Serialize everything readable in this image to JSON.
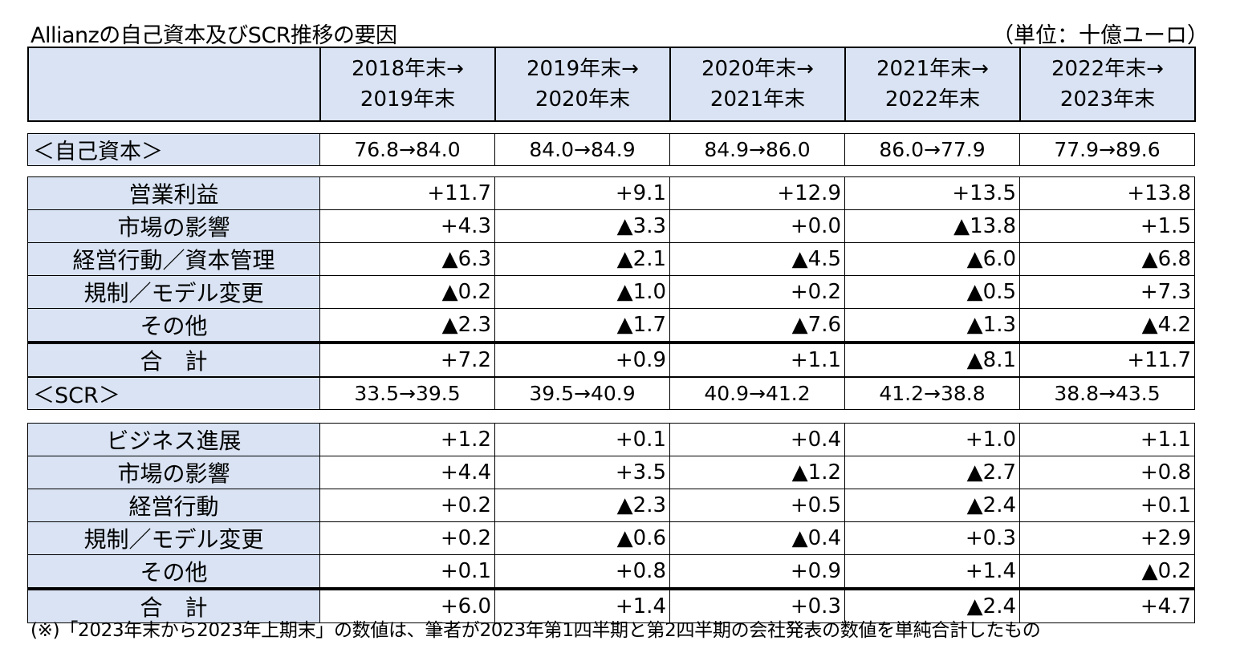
{
  "title": "Allianzの自己資本及びSCR推移の要因",
  "unit": "（単位：十億ユーロ）",
  "header": {
    "periods": [
      {
        "line1": "2018年末→",
        "line2": "2019年末"
      },
      {
        "line1": "2019年末→",
        "line2": "2020年末"
      },
      {
        "line1": "2020年末→",
        "line2": "2021年末"
      },
      {
        "line1": "2021年末→",
        "line2": "2022年末"
      },
      {
        "line1": "2022年末→",
        "line2": "2023年末"
      }
    ]
  },
  "equity": {
    "label": "＜自己資本＞",
    "values": [
      "76.8→84.0",
      "84.0→84.9",
      "84.9→86.0",
      "86.0→77.9",
      "77.9→89.6"
    ],
    "rows": [
      {
        "label": "営業利益",
        "values": [
          "+11.7",
          "+9.1",
          "+12.9",
          "+13.5",
          "+13.8"
        ]
      },
      {
        "label": "市場の影響",
        "values": [
          "+4.3",
          "▲3.3",
          "+0.0",
          "▲13.8",
          "+1.5"
        ]
      },
      {
        "label": "経営行動／資本管理",
        "values": [
          "▲6.3",
          "▲2.1",
          "▲4.5",
          "▲6.0",
          "▲6.8"
        ]
      },
      {
        "label": "規制／モデル変更",
        "values": [
          "▲0.2",
          "▲1.0",
          "+0.2",
          "▲0.5",
          "+7.3"
        ]
      },
      {
        "label": "その他",
        "values": [
          "▲2.3",
          "▲1.7",
          "▲7.6",
          "▲1.3",
          "▲4.2"
        ]
      }
    ],
    "total": {
      "label": "合　計",
      "values": [
        "+7.2",
        "+0.9",
        "+1.1",
        "▲8.1",
        "+11.7"
      ]
    }
  },
  "scr": {
    "label": "＜SCR＞",
    "values": [
      "33.5→39.5",
      "39.5→40.9",
      "40.9→41.2",
      "41.2→38.8",
      "38.8→43.5"
    ],
    "rows": [
      {
        "label": "ビジネス進展",
        "values": [
          "+1.2",
          "+0.1",
          "+0.4",
          "+1.0",
          "+1.1"
        ]
      },
      {
        "label": "市場の影響",
        "values": [
          "+4.4",
          "+3.5",
          "▲1.2",
          "▲2.7",
          "+0.8"
        ]
      },
      {
        "label": "経営行動",
        "values": [
          "+0.2",
          "▲2.3",
          "+0.5",
          "▲2.4",
          "+0.1"
        ]
      },
      {
        "label": "規制／モデル変更",
        "values": [
          "+0.2",
          "▲0.6",
          "▲0.4",
          "+0.3",
          "+2.9"
        ]
      },
      {
        "label": "その他",
        "values": [
          "+0.1",
          "+0.8",
          "+0.9",
          "+1.4",
          "▲0.2"
        ]
      }
    ],
    "total": {
      "label": "合　計",
      "values": [
        "+6.0",
        "+1.4",
        "+0.3",
        "▲2.4",
        "+4.7"
      ]
    }
  },
  "footnote": "(※)「2023年末から2023年上期末」の数値は、筆者が2023年第1四半期と第2四半期の会社発表の数値を単純合計したもの",
  "colors": {
    "header_fill": "#d9e3f3",
    "border": "#000000"
  }
}
